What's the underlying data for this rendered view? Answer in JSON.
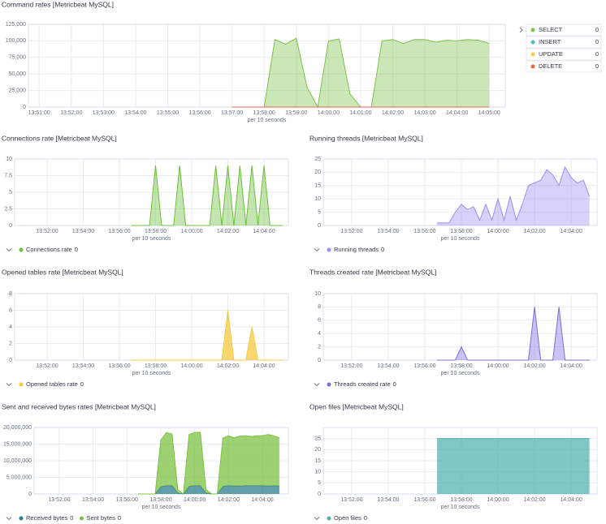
{
  "chart_data": [
    {
      "type": "area",
      "title": "Command rates [Metricbeat MySQL]",
      "x_label": "per 10 seconds",
      "legend": "right",
      "grid": true,
      "stacked": false,
      "x": [
        "13:57:00",
        "13:57:20",
        "13:57:40",
        "13:58:00",
        "13:58:20",
        "13:58:40",
        "13:59:00",
        "13:59:20",
        "13:59:40",
        "14:00:00",
        "14:00:20",
        "14:00:40",
        "14:01:00",
        "14:01:20",
        "14:01:40",
        "14:02:00",
        "14:02:20",
        "14:02:40",
        "14:03:00",
        "14:03:20",
        "14:03:40",
        "14:04:00",
        "14:04:20",
        "14:04:40",
        "14:05:00"
      ],
      "xlim": [
        "13:50:40",
        "14:05:30"
      ],
      "xticks": [
        "13:51:00",
        "13:52:00",
        "13:53:00",
        "13:54:00",
        "13:55:00",
        "13:56:00",
        "13:57:00",
        "13:58:00",
        "13:59:00",
        "14:00:00",
        "14:01:00",
        "14:02:00",
        "14:03:00",
        "14:04:00",
        "14:05:00"
      ],
      "ylim": [
        0,
        125000
      ],
      "yticks": [
        0,
        {
          "value": 25000,
          "label": "25,000"
        },
        {
          "value": 50000,
          "label": "50,000"
        },
        {
          "value": 75000,
          "label": "75,000"
        },
        {
          "value": 100000,
          "label": "100,000"
        },
        {
          "value": 125000,
          "label": "125,000"
        }
      ],
      "series": [
        {
          "name": "SELECT",
          "color": "#7dc24b",
          "current_value": 0,
          "values": [
            0,
            0,
            0,
            0,
            102000,
            95000,
            104000,
            30000,
            0,
            100000,
            103000,
            20000,
            0,
            0,
            100000,
            102000,
            96000,
            102000,
            102000,
            98000,
            101000,
            100000,
            102000,
            101000,
            96000
          ]
        },
        {
          "name": "INSERT",
          "color": "#54b3d6",
          "current_value": 0,
          "values": [
            0,
            0,
            0,
            0,
            0,
            0,
            0,
            0,
            0,
            0,
            0,
            0,
            0,
            0,
            0,
            0,
            0,
            0,
            0,
            0,
            0,
            0,
            0,
            0,
            0
          ]
        },
        {
          "name": "UPDATE",
          "color": "#f5cd45",
          "current_value": 0,
          "values": [
            0,
            0,
            0,
            0,
            0,
            0,
            0,
            0,
            0,
            0,
            0,
            0,
            0,
            0,
            0,
            0,
            0,
            0,
            0,
            0,
            0,
            0,
            0,
            0,
            0
          ]
        },
        {
          "name": "DELETE",
          "color": "#e7664c",
          "current_value": 0,
          "values": [
            0,
            0,
            0,
            0,
            0,
            0,
            0,
            0,
            0,
            0,
            0,
            0,
            0,
            0,
            0,
            0,
            0,
            0,
            0,
            0,
            0,
            0,
            0,
            0,
            0
          ]
        }
      ]
    },
    {
      "type": "area",
      "title": "Connections rate [Metricbeat MySQL]",
      "x_label": "per 10 seconds",
      "legend": "bottom",
      "grid": true,
      "stacked": false,
      "x": [
        "13:56:40",
        "13:57:00",
        "13:57:20",
        "13:57:40",
        "13:58:00",
        "13:58:20",
        "13:58:40",
        "13:59:00",
        "13:59:20",
        "13:59:40",
        "14:00:00",
        "14:00:20",
        "14:00:40",
        "14:01:00",
        "14:01:20",
        "14:01:40",
        "14:02:00",
        "14:02:20",
        "14:02:40",
        "14:03:00",
        "14:03:20",
        "14:03:40",
        "14:04:00",
        "14:04:20",
        "14:04:40",
        "14:05:00"
      ],
      "xlim": [
        "13:50:12",
        "14:05:21"
      ],
      "xticks": [
        "13:52:00",
        "13:54:00",
        "13:56:00",
        "13:58:00",
        "14:00:00",
        "14:02:00",
        "14:04:00"
      ],
      "ylim": [
        0,
        10
      ],
      "yticks": [
        0,
        2.5,
        5,
        7.5,
        10
      ],
      "series": [
        {
          "name": "Connections rate",
          "color": "#6cbf3a",
          "current_value": 0,
          "values": [
            0,
            0,
            0,
            0,
            9,
            0,
            0,
            0,
            9,
            0,
            0,
            0,
            0,
            0,
            9,
            0,
            9,
            0,
            9,
            0,
            9,
            0,
            9,
            0,
            0,
            0
          ]
        }
      ]
    },
    {
      "type": "area",
      "title": "Running threads [Metricbeat MySQL]",
      "x_label": "per 10 seconds",
      "legend": "bottom",
      "grid": true,
      "stacked": false,
      "x": [
        "13:56:40",
        "13:57:00",
        "13:57:20",
        "13:57:40",
        "13:58:00",
        "13:58:20",
        "13:58:40",
        "13:59:00",
        "13:59:20",
        "13:59:40",
        "14:00:00",
        "14:00:20",
        "14:00:40",
        "14:01:00",
        "14:01:20",
        "14:01:40",
        "14:02:00",
        "14:02:20",
        "14:02:40",
        "14:03:00",
        "14:03:20",
        "14:03:40",
        "14:04:00",
        "14:04:20",
        "14:04:40",
        "14:05:00"
      ],
      "xlim": [
        "13:50:27",
        "14:05:25"
      ],
      "xticks": [
        "13:52:00",
        "13:54:00",
        "13:56:00",
        "13:58:00",
        "14:00:00",
        "14:02:00",
        "14:04:00"
      ],
      "ylim": [
        0,
        25
      ],
      "yticks": [
        0,
        5,
        10,
        15,
        20,
        25
      ],
      "series": [
        {
          "name": "Running threads",
          "color": "#9e8cf0",
          "current_value": 0,
          "values": [
            1,
            1,
            1,
            5,
            8,
            6,
            7,
            2,
            8,
            2,
            10,
            2,
            11,
            2,
            8,
            15,
            16,
            17,
            21,
            19,
            15,
            22,
            18,
            16,
            17,
            11
          ]
        }
      ]
    },
    {
      "type": "area",
      "title": "Opened tables rate [Metricbeat MySQL]",
      "x_label": "per 10 seconds",
      "legend": "bottom",
      "grid": true,
      "stacked": false,
      "x": [
        "13:56:40",
        "13:57:00",
        "13:57:20",
        "13:57:40",
        "13:58:00",
        "13:58:20",
        "13:58:40",
        "13:59:00",
        "13:59:20",
        "13:59:40",
        "14:00:00",
        "14:00:20",
        "14:00:40",
        "14:01:00",
        "14:01:20",
        "14:01:40",
        "14:02:00",
        "14:02:20",
        "14:02:40",
        "14:03:00",
        "14:03:20",
        "14:03:40",
        "14:04:00",
        "14:04:20",
        "14:04:40",
        "14:05:00"
      ],
      "xlim": [
        "13:50:12",
        "14:05:21"
      ],
      "xticks": [
        "13:52:00",
        "13:54:00",
        "13:56:00",
        "13:58:00",
        "14:00:00",
        "14:02:00",
        "14:04:00"
      ],
      "ylim": [
        0,
        8
      ],
      "yticks": [
        0,
        2,
        4,
        6,
        8
      ],
      "series": [
        {
          "name": "Opened tables rate",
          "color": "#f5c942",
          "current_value": 0,
          "values": [
            0,
            0,
            0,
            0,
            0,
            0,
            0,
            0,
            0,
            0,
            0,
            0,
            0,
            0,
            0,
            0,
            6,
            0,
            0,
            0,
            4,
            0,
            0,
            0,
            0,
            0
          ]
        }
      ]
    },
    {
      "type": "area",
      "title": "Threads created rate [Metricbeat MySQL]",
      "x_label": "per 10 seconds",
      "legend": "bottom",
      "grid": true,
      "stacked": false,
      "x": [
        "13:56:40",
        "13:57:00",
        "13:57:20",
        "13:57:40",
        "13:58:00",
        "13:58:20",
        "13:58:40",
        "13:59:00",
        "13:59:20",
        "13:59:40",
        "14:00:00",
        "14:00:20",
        "14:00:40",
        "14:01:00",
        "14:01:20",
        "14:01:40",
        "14:02:00",
        "14:02:20",
        "14:02:40",
        "14:03:00",
        "14:03:20",
        "14:03:40",
        "14:04:00",
        "14:04:20",
        "14:04:40",
        "14:05:00"
      ],
      "xlim": [
        "13:50:27",
        "14:05:25"
      ],
      "xticks": [
        "13:52:00",
        "13:54:00",
        "13:56:00",
        "13:58:00",
        "14:00:00",
        "14:02:00",
        "14:04:00"
      ],
      "ylim": [
        0,
        10
      ],
      "yticks": [
        0,
        2,
        4,
        6,
        8,
        10
      ],
      "series": [
        {
          "name": "Threads created rate",
          "color": "#7b6be0",
          "current_value": 0,
          "values": [
            0,
            0,
            0,
            0,
            2,
            0,
            0,
            0,
            0,
            0,
            0,
            0,
            0,
            0,
            0,
            0,
            8,
            0,
            0,
            0,
            8,
            0,
            0,
            0,
            0,
            0
          ]
        }
      ]
    },
    {
      "type": "area",
      "title": "Sent and received bytes rates [Metricbeat MySQL]",
      "x_label": "per 10 seconds",
      "legend": "bottom",
      "grid": true,
      "stacked": true,
      "x": [
        "13:56:40",
        "13:57:00",
        "13:57:20",
        "13:57:40",
        "13:58:00",
        "13:58:20",
        "13:58:40",
        "13:59:00",
        "13:59:20",
        "13:59:40",
        "14:00:00",
        "14:00:20",
        "14:00:40",
        "14:01:00",
        "14:01:20",
        "14:01:40",
        "14:02:00",
        "14:02:20",
        "14:02:40",
        "14:03:00",
        "14:03:20",
        "14:03:40",
        "14:04:00",
        "14:04:20",
        "14:04:40",
        "14:05:00"
      ],
      "xlim": [
        "13:50:31",
        "14:05:32"
      ],
      "xticks": [
        "13:52:00",
        "13:54:00",
        "13:56:00",
        "13:58:00",
        "14:00:00",
        "14:02:00",
        "14:04:00"
      ],
      "ylim": [
        0,
        20000000
      ],
      "yticks": [
        0,
        {
          "value": 5000000,
          "label": "5,000,000"
        },
        {
          "value": 10000000,
          "label": "10,000,000"
        },
        {
          "value": 15000000,
          "label": "15,000,000"
        },
        {
          "value": 20000000,
          "label": "20,000,000"
        }
      ],
      "series": [
        {
          "name": "Received bytes",
          "color": "#2e7f8c",
          "current_value": 0,
          "values": [
            0,
            0,
            0,
            0,
            2200000,
            2500000,
            2500000,
            300000,
            0,
            2300000,
            2500000,
            2500000,
            300000,
            0,
            0,
            2300000,
            2500000,
            2400000,
            2400000,
            2500000,
            2500000,
            2500000,
            2500000,
            2400000,
            2500000,
            2400000
          ]
        },
        {
          "name": "Sent bytes",
          "color": "#7cc242",
          "current_value": 0,
          "values": [
            0,
            0,
            0,
            0,
            14000000,
            16000000,
            15500000,
            1000000,
            0,
            15500000,
            16000000,
            16000000,
            1000000,
            0,
            0,
            14500000,
            15000000,
            14500000,
            15000000,
            15000000,
            14800000,
            15000000,
            15000000,
            15500000,
            15000000,
            14500000
          ]
        }
      ]
    },
    {
      "type": "area",
      "title": "Open files [Metricbeat MySQL]",
      "x_label": "per 10 seconds",
      "legend": "bottom",
      "grid": true,
      "stacked": false,
      "x": [
        "13:56:40",
        "13:57:00",
        "13:57:20",
        "13:57:40",
        "13:58:00",
        "13:58:20",
        "13:58:40",
        "13:59:00",
        "13:59:20",
        "13:59:40",
        "14:00:00",
        "14:00:20",
        "14:00:40",
        "14:01:00",
        "14:01:20",
        "14:01:40",
        "14:02:00",
        "14:02:20",
        "14:02:40",
        "14:03:00",
        "14:03:20",
        "14:03:40",
        "14:04:00",
        "14:04:20",
        "14:04:40",
        "14:05:00"
      ],
      "xlim": [
        "13:50:27",
        "14:05:25"
      ],
      "xticks": [
        "13:52:00",
        "13:54:00",
        "13:56:00",
        "13:58:00",
        "14:00:00",
        "14:02:00",
        "14:04:00"
      ],
      "ylim": [
        0,
        30
      ],
      "yticks": [
        0,
        5,
        10,
        15,
        20,
        25
      ],
      "series": [
        {
          "name": "Open files",
          "color": "#54b3b0",
          "current_value": 0,
          "values": [
            25,
            25,
            25,
            25,
            25,
            25,
            25,
            25,
            25,
            25,
            25,
            25,
            25,
            25,
            25,
            25,
            25,
            25,
            25,
            25,
            25,
            25,
            25,
            25,
            25,
            25
          ]
        }
      ]
    }
  ]
}
